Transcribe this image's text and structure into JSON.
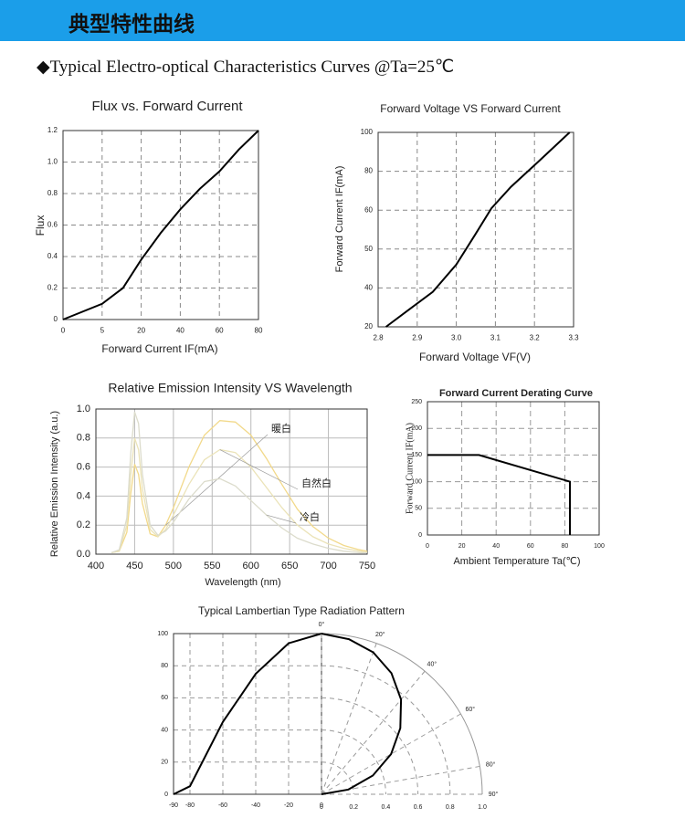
{
  "header": {
    "title": "典型特性曲线",
    "subtitle": "◆Typical Electro-optical Characteristics Curves @Ta=25℃"
  },
  "chart_data": [
    {
      "type": "line",
      "title": "Flux vs. Forward Current",
      "xlabel": "Forward Current IF(mA)",
      "ylabel": "Flux",
      "x": [
        0,
        5,
        13,
        20,
        30,
        40,
        50,
        60,
        70,
        80
      ],
      "values": [
        0,
        0.1,
        0.2,
        0.38,
        0.55,
        0.7,
        0.83,
        0.94,
        1.08,
        1.2
      ],
      "color": "#000000",
      "xlim": [
        0,
        80
      ],
      "ylim": [
        0,
        1.2
      ],
      "xscale": "ticks",
      "xticks": [
        0,
        5,
        20,
        40,
        60,
        80
      ],
      "yticks": [
        0,
        0.2,
        0.4,
        0.6,
        0.8,
        {
          "value": 1,
          "label": "1.0"
        },
        1.2
      ],
      "grid": true
    },
    {
      "type": "line",
      "title": "Forward Voltage VS Forward Current",
      "xlabel": "Forward Voltage VF(V)",
      "ylabel": "Forward Current IF(mA)",
      "x": [
        2.82,
        2.88,
        2.94,
        3.0,
        3.05,
        3.09,
        3.14,
        3.21,
        3.29
      ],
      "values": [
        20,
        29,
        38,
        46,
        54,
        61,
        72,
        85,
        100
      ],
      "color": "#000000",
      "xlim": [
        2.8,
        3.3
      ],
      "ylim": [
        20,
        100
      ],
      "yscale": "ticks",
      "xticks": [
        2.8,
        2.9,
        {
          "value": 3,
          "label": "3.0"
        },
        3.1,
        3.2,
        3.3
      ],
      "yticks": [
        20,
        40,
        50,
        60,
        80,
        100
      ],
      "grid": true
    },
    {
      "type": "line",
      "title": "Relative Emission Intensity VS Wavelength",
      "xlabel": "Wavelength (nm)",
      "ylabel": "Relative Emission Intensity (a.u.)",
      "x": [
        420,
        430,
        440,
        445,
        450,
        455,
        460,
        470,
        480,
        490,
        500,
        520,
        540,
        560,
        580,
        600,
        620,
        640,
        660,
        680,
        700,
        720,
        740,
        750
      ],
      "series": [
        {
          "name": "暖白",
          "color": "#f2d98a",
          "values": [
            0.01,
            0.02,
            0.15,
            0.42,
            0.62,
            0.55,
            0.35,
            0.14,
            0.12,
            0.2,
            0.32,
            0.6,
            0.82,
            0.92,
            0.91,
            0.82,
            0.66,
            0.48,
            0.31,
            0.19,
            0.11,
            0.06,
            0.03,
            0.02
          ]
        },
        {
          "name": "自然白",
          "color": "#ebe3b8",
          "values": [
            0.01,
            0.02,
            0.2,
            0.55,
            0.8,
            0.72,
            0.45,
            0.17,
            0.12,
            0.17,
            0.27,
            0.48,
            0.65,
            0.72,
            0.7,
            0.6,
            0.46,
            0.32,
            0.2,
            0.12,
            0.07,
            0.04,
            0.02,
            0.01
          ]
        },
        {
          "name": "冷白",
          "color": "#dcdccc",
          "values": [
            0.01,
            0.03,
            0.25,
            0.7,
            0.98,
            0.9,
            0.55,
            0.2,
            0.13,
            0.16,
            0.22,
            0.38,
            0.5,
            0.52,
            0.47,
            0.37,
            0.27,
            0.18,
            0.11,
            0.07,
            0.04,
            0.02,
            0.01,
            0.01
          ]
        }
      ],
      "xlim": [
        400,
        750
      ],
      "ylim": [
        0,
        1
      ],
      "xticks": [
        400,
        450,
        500,
        550,
        600,
        650,
        700,
        750
      ],
      "yticks": [
        {
          "value": 0,
          "label": "0.0"
        },
        0.2,
        0.4,
        0.6,
        0.8,
        {
          "value": 1,
          "label": "1.0"
        }
      ],
      "grid": true
    },
    {
      "type": "line",
      "title": "Forward Current Derating Curve",
      "xlabel": "Ambient Temperature Ta(℃)",
      "ylabel": "Forward Current IF(mA)",
      "x": [
        0,
        30,
        83,
        83
      ],
      "values": [
        150,
        150,
        100,
        0
      ],
      "color": "#000000",
      "xlim": [
        0,
        100
      ],
      "ylim": [
        0,
        250
      ],
      "xticks": [
        0,
        20,
        40,
        60,
        80,
        100
      ],
      "yticks": [
        0,
        50,
        100,
        150,
        200,
        250
      ],
      "grid": true
    },
    {
      "type": "line",
      "title": "Typical Lambertian Type Radiation Pattern",
      "x": [
        -90,
        -80,
        -60,
        -40,
        -20,
        0
      ],
      "values": [
        0,
        5,
        45,
        75,
        94,
        100
      ],
      "color": "#000000",
      "xlim": [
        -90,
        0
      ],
      "ylim": [
        0,
        100
      ],
      "xticks": [
        -90,
        -80,
        -60,
        -40,
        -20,
        0
      ],
      "yticks": [
        0,
        20,
        40,
        60,
        80,
        100
      ],
      "grid": true
    },
    {
      "type": "polar",
      "theta": [
        0,
        10,
        20,
        30,
        40,
        50,
        60,
        70,
        80,
        90
      ],
      "r": [
        1,
        0.98,
        0.94,
        0.87,
        0.77,
        0.64,
        0.5,
        0.34,
        0.17,
        0
      ],
      "color": "#000000",
      "rlim": [
        0,
        1
      ],
      "rticks": [
        0,
        0.2,
        0.4,
        0.6,
        0.8,
        {
          "value": 1,
          "label": "1.0"
        }
      ],
      "thetaticks": [
        {
          "value": 0,
          "label": "0°"
        },
        {
          "value": 20,
          "label": "20°"
        },
        {
          "value": 40,
          "label": "40°"
        },
        {
          "value": 60,
          "label": "60°"
        },
        {
          "value": 80,
          "label": "80°"
        },
        {
          "value": 90,
          "label": "90°"
        }
      ],
      "grid": true
    }
  ]
}
